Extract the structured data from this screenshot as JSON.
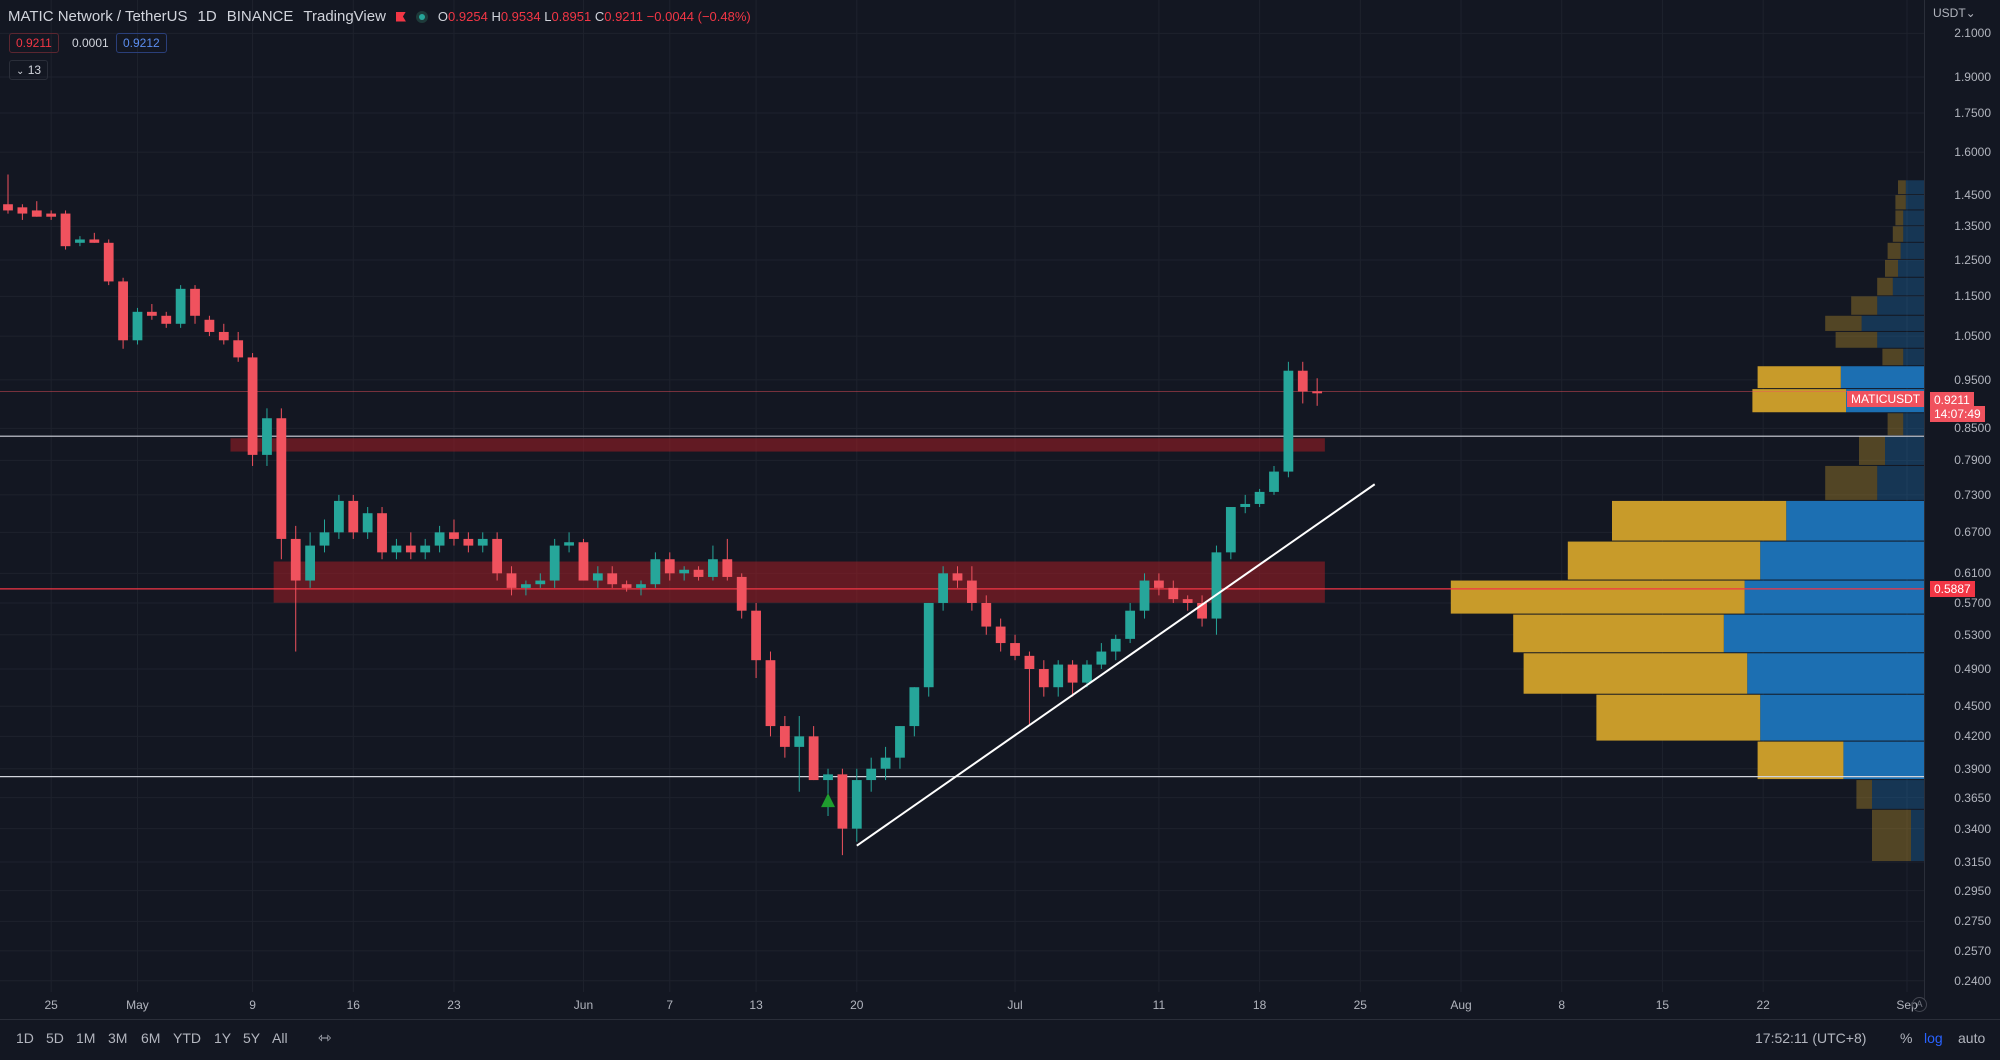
{
  "header": {
    "symbol": "MATIC Network / TetherUS",
    "interval": "1D",
    "exchange": "BINANCE",
    "source": "TradingView",
    "ohlc": {
      "o_label": "O",
      "o": "0.9254",
      "h_label": "H",
      "h": "0.9534",
      "l_label": "L",
      "l": "0.8951",
      "c_label": "C",
      "c": "0.9211",
      "change": "−0.0044 (−0.48%)"
    },
    "bid": "0.9211",
    "spread": "0.0001",
    "ask": "0.9212",
    "indicator_count": "13"
  },
  "colors": {
    "up": "#26a69a",
    "down": "#f0525e",
    "bg": "#131722",
    "zone": "#a31e25",
    "vp_gold": "#c89b2a",
    "vp_blue": "#1c6fb2"
  },
  "axis": {
    "currency": "USDT"
  },
  "price_tags": {
    "symbol_label": "MATICUSDT",
    "last_price": "0.9211",
    "countdown": "14:07:49",
    "poc_price": "0.5887"
  },
  "chart_data": {
    "type": "candlestick",
    "scale": "log",
    "ylim": [
      0.235,
      2.2
    ],
    "x_range": [
      "2022-04-22",
      "2022-09-01"
    ],
    "yticks": [
      2.1,
      1.9,
      1.75,
      1.6,
      1.45,
      1.35,
      1.25,
      1.15,
      1.05,
      0.95,
      0.85,
      0.79,
      0.73,
      0.67,
      0.61,
      0.57,
      0.53,
      0.49,
      0.45,
      0.42,
      0.39,
      0.365,
      0.34,
      0.315,
      0.295,
      0.275,
      0.257,
      0.24
    ],
    "ytick_labels": [
      "2.1000",
      "1.9000",
      "1.7500",
      "1.6000",
      "1.4500",
      "1.3500",
      "1.2500",
      "1.1500",
      "1.0500",
      "0.9500",
      "0.8500",
      "0.7900",
      "0.7300",
      "0.6700",
      "0.6100",
      "0.5700",
      "0.5300",
      "0.4900",
      "0.4500",
      "0.4200",
      "0.3900",
      "0.3650",
      "0.3400",
      "0.3150",
      "0.2950",
      "0.2750",
      "0.2570",
      "0.2400"
    ],
    "xticks": [
      {
        "label": "25",
        "date": "2022-04-25"
      },
      {
        "label": "May",
        "date": "2022-05-01"
      },
      {
        "label": "9",
        "date": "2022-05-09"
      },
      {
        "label": "16",
        "date": "2022-05-16"
      },
      {
        "label": "23",
        "date": "2022-05-23"
      },
      {
        "label": "Jun",
        "date": "2022-06-01"
      },
      {
        "label": "7",
        "date": "2022-06-07"
      },
      {
        "label": "13",
        "date": "2022-06-13"
      },
      {
        "label": "20",
        "date": "2022-06-20"
      },
      {
        "label": "Jul",
        "date": "2022-07-01"
      },
      {
        "label": "11",
        "date": "2022-07-11"
      },
      {
        "label": "18",
        "date": "2022-07-18"
      },
      {
        "label": "25",
        "date": "2022-07-25"
      },
      {
        "label": "Aug",
        "date": "2022-08-01"
      },
      {
        "label": "8",
        "date": "2022-08-08"
      },
      {
        "label": "15",
        "date": "2022-08-15"
      },
      {
        "label": "22",
        "date": "2022-08-22"
      },
      {
        "label": "Sep",
        "date": "2022-09-01"
      }
    ],
    "candles": [
      {
        "d": "2022-04-22",
        "o": 1.42,
        "h": 1.52,
        "l": 1.39,
        "c": 1.4
      },
      {
        "d": "2022-04-23",
        "o": 1.41,
        "h": 1.42,
        "l": 1.37,
        "c": 1.39
      },
      {
        "d": "2022-04-24",
        "o": 1.4,
        "h": 1.43,
        "l": 1.38,
        "c": 1.38
      },
      {
        "d": "2022-04-25",
        "o": 1.39,
        "h": 1.4,
        "l": 1.37,
        "c": 1.38
      },
      {
        "d": "2022-04-26",
        "o": 1.39,
        "h": 1.4,
        "l": 1.28,
        "c": 1.29
      },
      {
        "d": "2022-04-27",
        "o": 1.3,
        "h": 1.32,
        "l": 1.29,
        "c": 1.31
      },
      {
        "d": "2022-04-28",
        "o": 1.31,
        "h": 1.33,
        "l": 1.3,
        "c": 1.3
      },
      {
        "d": "2022-04-29",
        "o": 1.3,
        "h": 1.31,
        "l": 1.18,
        "c": 1.19
      },
      {
        "d": "2022-04-30",
        "o": 1.19,
        "h": 1.2,
        "l": 1.02,
        "c": 1.04
      },
      {
        "d": "2022-05-01",
        "o": 1.04,
        "h": 1.12,
        "l": 1.03,
        "c": 1.11
      },
      {
        "d": "2022-05-02",
        "o": 1.11,
        "h": 1.13,
        "l": 1.09,
        "c": 1.1
      },
      {
        "d": "2022-05-03",
        "o": 1.1,
        "h": 1.11,
        "l": 1.07,
        "c": 1.08
      },
      {
        "d": "2022-05-04",
        "o": 1.08,
        "h": 1.18,
        "l": 1.07,
        "c": 1.17
      },
      {
        "d": "2022-05-05",
        "o": 1.17,
        "h": 1.18,
        "l": 1.08,
        "c": 1.1
      },
      {
        "d": "2022-05-06",
        "o": 1.09,
        "h": 1.1,
        "l": 1.05,
        "c": 1.06
      },
      {
        "d": "2022-05-07",
        "o": 1.06,
        "h": 1.08,
        "l": 1.03,
        "c": 1.04
      },
      {
        "d": "2022-05-08",
        "o": 1.04,
        "h": 1.06,
        "l": 0.99,
        "c": 1.0
      },
      {
        "d": "2022-05-09",
        "o": 1.0,
        "h": 1.01,
        "l": 0.78,
        "c": 0.8
      },
      {
        "d": "2022-05-10",
        "o": 0.8,
        "h": 0.89,
        "l": 0.78,
        "c": 0.87
      },
      {
        "d": "2022-05-11",
        "o": 0.87,
        "h": 0.89,
        "l": 0.63,
        "c": 0.66
      },
      {
        "d": "2022-05-12",
        "o": 0.66,
        "h": 0.68,
        "l": 0.51,
        "c": 0.6
      },
      {
        "d": "2022-05-13",
        "o": 0.6,
        "h": 0.67,
        "l": 0.59,
        "c": 0.65
      },
      {
        "d": "2022-05-14",
        "o": 0.65,
        "h": 0.69,
        "l": 0.64,
        "c": 0.67
      },
      {
        "d": "2022-05-15",
        "o": 0.67,
        "h": 0.73,
        "l": 0.66,
        "c": 0.72
      },
      {
        "d": "2022-05-16",
        "o": 0.72,
        "h": 0.73,
        "l": 0.66,
        "c": 0.67
      },
      {
        "d": "2022-05-17",
        "o": 0.67,
        "h": 0.71,
        "l": 0.66,
        "c": 0.7
      },
      {
        "d": "2022-05-18",
        "o": 0.7,
        "h": 0.71,
        "l": 0.63,
        "c": 0.64
      },
      {
        "d": "2022-05-19",
        "o": 0.64,
        "h": 0.66,
        "l": 0.63,
        "c": 0.65
      },
      {
        "d": "2022-05-20",
        "o": 0.65,
        "h": 0.67,
        "l": 0.63,
        "c": 0.64
      },
      {
        "d": "2022-05-21",
        "o": 0.64,
        "h": 0.66,
        "l": 0.63,
        "c": 0.65
      },
      {
        "d": "2022-05-22",
        "o": 0.65,
        "h": 0.68,
        "l": 0.64,
        "c": 0.67
      },
      {
        "d": "2022-05-23",
        "o": 0.67,
        "h": 0.69,
        "l": 0.65,
        "c": 0.66
      },
      {
        "d": "2022-05-24",
        "o": 0.66,
        "h": 0.67,
        "l": 0.64,
        "c": 0.65
      },
      {
        "d": "2022-05-25",
        "o": 0.65,
        "h": 0.67,
        "l": 0.64,
        "c": 0.66
      },
      {
        "d": "2022-05-26",
        "o": 0.66,
        "h": 0.67,
        "l": 0.6,
        "c": 0.61
      },
      {
        "d": "2022-05-27",
        "o": 0.61,
        "h": 0.62,
        "l": 0.58,
        "c": 0.59
      },
      {
        "d": "2022-05-28",
        "o": 0.59,
        "h": 0.6,
        "l": 0.58,
        "c": 0.595
      },
      {
        "d": "2022-05-29",
        "o": 0.595,
        "h": 0.61,
        "l": 0.59,
        "c": 0.6
      },
      {
        "d": "2022-05-30",
        "o": 0.6,
        "h": 0.66,
        "l": 0.59,
        "c": 0.65
      },
      {
        "d": "2022-05-31",
        "o": 0.65,
        "h": 0.67,
        "l": 0.64,
        "c": 0.655
      },
      {
        "d": "2022-06-01",
        "o": 0.655,
        "h": 0.66,
        "l": 0.6,
        "c": 0.6
      },
      {
        "d": "2022-06-02",
        "o": 0.6,
        "h": 0.62,
        "l": 0.59,
        "c": 0.61
      },
      {
        "d": "2022-06-03",
        "o": 0.61,
        "h": 0.62,
        "l": 0.59,
        "c": 0.595
      },
      {
        "d": "2022-06-04",
        "o": 0.595,
        "h": 0.6,
        "l": 0.585,
        "c": 0.59
      },
      {
        "d": "2022-06-05",
        "o": 0.59,
        "h": 0.6,
        "l": 0.58,
        "c": 0.595
      },
      {
        "d": "2022-06-06",
        "o": 0.595,
        "h": 0.64,
        "l": 0.59,
        "c": 0.63
      },
      {
        "d": "2022-06-07",
        "o": 0.63,
        "h": 0.64,
        "l": 0.6,
        "c": 0.61
      },
      {
        "d": "2022-06-08",
        "o": 0.61,
        "h": 0.62,
        "l": 0.6,
        "c": 0.615
      },
      {
        "d": "2022-06-09",
        "o": 0.615,
        "h": 0.62,
        "l": 0.6,
        "c": 0.605
      },
      {
        "d": "2022-06-10",
        "o": 0.605,
        "h": 0.65,
        "l": 0.6,
        "c": 0.63
      },
      {
        "d": "2022-06-11",
        "o": 0.63,
        "h": 0.66,
        "l": 0.6,
        "c": 0.605
      },
      {
        "d": "2022-06-12",
        "o": 0.605,
        "h": 0.61,
        "l": 0.55,
        "c": 0.56
      },
      {
        "d": "2022-06-13",
        "o": 0.56,
        "h": 0.57,
        "l": 0.48,
        "c": 0.5
      },
      {
        "d": "2022-06-14",
        "o": 0.5,
        "h": 0.51,
        "l": 0.42,
        "c": 0.43
      },
      {
        "d": "2022-06-15",
        "o": 0.43,
        "h": 0.44,
        "l": 0.4,
        "c": 0.41
      },
      {
        "d": "2022-06-16",
        "o": 0.41,
        "h": 0.44,
        "l": 0.37,
        "c": 0.42
      },
      {
        "d": "2022-06-17",
        "o": 0.42,
        "h": 0.43,
        "l": 0.38,
        "c": 0.38
      },
      {
        "d": "2022-06-18",
        "o": 0.38,
        "h": 0.39,
        "l": 0.35,
        "c": 0.385
      },
      {
        "d": "2022-06-19",
        "o": 0.385,
        "h": 0.39,
        "l": 0.32,
        "c": 0.34
      },
      {
        "d": "2022-06-20",
        "o": 0.34,
        "h": 0.39,
        "l": 0.33,
        "c": 0.38
      },
      {
        "d": "2022-06-21",
        "o": 0.38,
        "h": 0.4,
        "l": 0.37,
        "c": 0.39
      },
      {
        "d": "2022-06-22",
        "o": 0.39,
        "h": 0.41,
        "l": 0.38,
        "c": 0.4
      },
      {
        "d": "2022-06-23",
        "o": 0.4,
        "h": 0.43,
        "l": 0.39,
        "c": 0.43
      },
      {
        "d": "2022-06-24",
        "o": 0.43,
        "h": 0.47,
        "l": 0.42,
        "c": 0.47
      },
      {
        "d": "2022-06-25",
        "o": 0.47,
        "h": 0.57,
        "l": 0.46,
        "c": 0.57
      },
      {
        "d": "2022-06-26",
        "o": 0.57,
        "h": 0.62,
        "l": 0.56,
        "c": 0.61
      },
      {
        "d": "2022-06-27",
        "o": 0.61,
        "h": 0.62,
        "l": 0.59,
        "c": 0.6
      },
      {
        "d": "2022-06-28",
        "o": 0.6,
        "h": 0.62,
        "l": 0.56,
        "c": 0.57
      },
      {
        "d": "2022-06-29",
        "o": 0.57,
        "h": 0.58,
        "l": 0.53,
        "c": 0.54
      },
      {
        "d": "2022-06-30",
        "o": 0.54,
        "h": 0.55,
        "l": 0.51,
        "c": 0.52
      },
      {
        "d": "2022-07-01",
        "o": 0.52,
        "h": 0.53,
        "l": 0.5,
        "c": 0.505
      },
      {
        "d": "2022-07-02",
        "o": 0.505,
        "h": 0.51,
        "l": 0.43,
        "c": 0.49
      },
      {
        "d": "2022-07-03",
        "o": 0.49,
        "h": 0.5,
        "l": 0.46,
        "c": 0.47
      },
      {
        "d": "2022-07-04",
        "o": 0.47,
        "h": 0.5,
        "l": 0.46,
        "c": 0.495
      },
      {
        "d": "2022-07-05",
        "o": 0.495,
        "h": 0.5,
        "l": 0.46,
        "c": 0.475
      },
      {
        "d": "2022-07-06",
        "o": 0.475,
        "h": 0.5,
        "l": 0.47,
        "c": 0.495
      },
      {
        "d": "2022-07-07",
        "o": 0.495,
        "h": 0.52,
        "l": 0.49,
        "c": 0.51
      },
      {
        "d": "2022-07-08",
        "o": 0.51,
        "h": 0.53,
        "l": 0.5,
        "c": 0.525
      },
      {
        "d": "2022-07-09",
        "o": 0.525,
        "h": 0.57,
        "l": 0.52,
        "c": 0.56
      },
      {
        "d": "2022-07-10",
        "o": 0.56,
        "h": 0.61,
        "l": 0.55,
        "c": 0.6
      },
      {
        "d": "2022-07-11",
        "o": 0.6,
        "h": 0.61,
        "l": 0.58,
        "c": 0.59
      },
      {
        "d": "2022-07-12",
        "o": 0.59,
        "h": 0.6,
        "l": 0.57,
        "c": 0.575
      },
      {
        "d": "2022-07-13",
        "o": 0.575,
        "h": 0.58,
        "l": 0.56,
        "c": 0.57
      },
      {
        "d": "2022-07-14",
        "o": 0.57,
        "h": 0.58,
        "l": 0.54,
        "c": 0.55
      },
      {
        "d": "2022-07-15",
        "o": 0.55,
        "h": 0.65,
        "l": 0.53,
        "c": 0.64
      },
      {
        "d": "2022-07-16",
        "o": 0.64,
        "h": 0.71,
        "l": 0.63,
        "c": 0.71
      },
      {
        "d": "2022-07-17",
        "o": 0.71,
        "h": 0.73,
        "l": 0.7,
        "c": 0.715
      },
      {
        "d": "2022-07-18",
        "o": 0.715,
        "h": 0.74,
        "l": 0.71,
        "c": 0.735
      },
      {
        "d": "2022-07-19",
        "o": 0.735,
        "h": 0.78,
        "l": 0.73,
        "c": 0.77
      },
      {
        "d": "2022-07-20",
        "o": 0.77,
        "h": 0.99,
        "l": 0.76,
        "c": 0.97
      },
      {
        "d": "2022-07-21",
        "o": 0.97,
        "h": 0.99,
        "l": 0.9,
        "c": 0.925
      },
      {
        "d": "2022-07-22",
        "o": 0.9254,
        "h": 0.9534,
        "l": 0.8951,
        "c": 0.9211
      }
    ],
    "horizontal_lines": [
      {
        "price": 0.835,
        "color": "#d1d4dc"
      },
      {
        "price": 0.383,
        "color": "#d1d4dc"
      },
      {
        "price": 0.5887,
        "color": "#f23645"
      },
      {
        "price": 0.925,
        "color": "#f0525e"
      }
    ],
    "zones": [
      {
        "from": "2022-05-08",
        "to": "2022-07-23",
        "top": 0.83,
        "bottom": 0.807
      },
      {
        "from": "2022-05-11",
        "to": "2022-07-23",
        "top": 0.626,
        "bottom": 0.571
      }
    ],
    "trendline": {
      "from": {
        "d": "2022-06-20",
        "p": 0.327
      },
      "to": {
        "d": "2022-07-26",
        "p": 0.748
      }
    },
    "marker": {
      "d": "2022-06-18",
      "p": 0.363,
      "shape": "triangle-up",
      "color": "#1f9d2e"
    },
    "volume_profile": [
      {
        "top": 1.5,
        "bottom": 1.45,
        "a": 0.3,
        "b": 0.7
      },
      {
        "top": 1.45,
        "bottom": 1.4,
        "a": 0.4,
        "b": 0.7
      },
      {
        "top": 1.4,
        "bottom": 1.35,
        "a": 0.3,
        "b": 0.8
      },
      {
        "top": 1.35,
        "bottom": 1.3,
        "a": 0.4,
        "b": 0.8
      },
      {
        "top": 1.3,
        "bottom": 1.25,
        "a": 0.5,
        "b": 0.9
      },
      {
        "top": 1.25,
        "bottom": 1.2,
        "a": 0.5,
        "b": 1.0
      },
      {
        "top": 1.2,
        "bottom": 1.15,
        "a": 0.6,
        "b": 1.2
      },
      {
        "top": 1.15,
        "bottom": 1.1,
        "a": 1.0,
        "b": 1.8
      },
      {
        "top": 1.1,
        "bottom": 1.06,
        "a": 1.4,
        "b": 2.4
      },
      {
        "top": 1.06,
        "bottom": 1.02,
        "a": 1.6,
        "b": 1.8
      },
      {
        "top": 1.02,
        "bottom": 0.98,
        "a": 0.8,
        "b": 0.8
      },
      {
        "top": 0.98,
        "bottom": 0.93,
        "a": 3.2,
        "b": 3.2
      },
      {
        "top": 0.93,
        "bottom": 0.88,
        "a": 3.6,
        "b": 3.0
      },
      {
        "top": 0.88,
        "bottom": 0.835,
        "a": 0.6,
        "b": 0.8
      },
      {
        "top": 0.835,
        "bottom": 0.78,
        "a": 1.0,
        "b": 1.5
      },
      {
        "top": 0.78,
        "bottom": 0.72,
        "a": 2.0,
        "b": 1.8
      },
      {
        "top": 0.72,
        "bottom": 0.656,
        "a": 6.7,
        "b": 5.3
      },
      {
        "top": 0.656,
        "bottom": 0.6,
        "a": 7.4,
        "b": 6.3
      },
      {
        "top": 0.6,
        "bottom": 0.555,
        "a": 11.3,
        "b": 6.9
      },
      {
        "top": 0.555,
        "bottom": 0.508,
        "a": 8.1,
        "b": 7.7
      },
      {
        "top": 0.508,
        "bottom": 0.462,
        "a": 8.6,
        "b": 6.8
      },
      {
        "top": 0.462,
        "bottom": 0.415,
        "a": 6.3,
        "b": 6.3
      },
      {
        "top": 0.415,
        "bottom": 0.38,
        "a": 3.3,
        "b": 3.1
      },
      {
        "top": 0.38,
        "bottom": 0.355,
        "a": 0.6,
        "b": 2.0
      },
      {
        "top": 0.355,
        "bottom": 0.315,
        "a": 1.5,
        "b": 0.5
      }
    ]
  },
  "time_axis": {
    "corner_label": "A"
  },
  "bottom_bar": {
    "ranges": [
      "1D",
      "5D",
      "1M",
      "3M",
      "6M",
      "YTD",
      "1Y",
      "5Y",
      "All"
    ],
    "time": "17:52:11 (UTC+8)",
    "percent_label": "%",
    "log_label": "log",
    "auto_label": "auto"
  }
}
